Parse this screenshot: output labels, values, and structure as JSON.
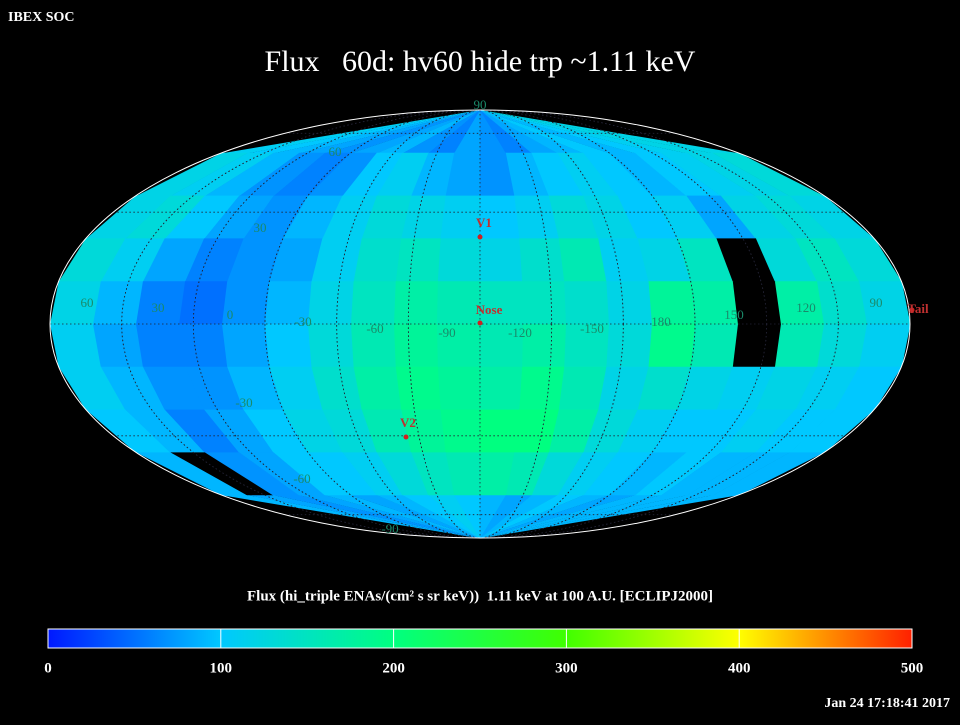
{
  "header": {
    "corner": "IBEX SOC",
    "title": "Flux   60d: hv60 hide trp ~1.11 keV"
  },
  "map": {
    "rows": [
      [
        110,
        100,
        90,
        80,
        70,
        80,
        90,
        70,
        60,
        80,
        70,
        60,
        80,
        90,
        100,
        90,
        100,
        110,
        120,
        120
      ],
      [
        120,
        110,
        90,
        70,
        60,
        70,
        100,
        110,
        90,
        80,
        70,
        90,
        100,
        110,
        100,
        90,
        100,
        110,
        120,
        130
      ],
      [
        120,
        130,
        100,
        80,
        70,
        90,
        110,
        130,
        120,
        110,
        100,
        110,
        130,
        120,
        100,
        110,
        80,
        120,
        130,
        120
      ],
      [
        130,
        110,
        80,
        60,
        70,
        80,
        110,
        140,
        150,
        130,
        120,
        140,
        160,
        110,
        120,
        150,
        null,
        130,
        150,
        130
      ],
      [
        120,
        90,
        60,
        50,
        70,
        90,
        120,
        150,
        170,
        160,
        150,
        150,
        140,
        120,
        180,
        170,
        null,
        170,
        140,
        120
      ],
      [
        110,
        80,
        60,
        60,
        80,
        100,
        130,
        160,
        180,
        170,
        160,
        170,
        150,
        130,
        190,
        160,
        null,
        160,
        130,
        110
      ],
      [
        110,
        90,
        70,
        70,
        90,
        110,
        140,
        170,
        190,
        180,
        170,
        190,
        160,
        120,
        140,
        120,
        110,
        120,
        110,
        100
      ],
      [
        100,
        90,
        60,
        80,
        100,
        120,
        130,
        160,
        180,
        190,
        200,
        200,
        170,
        130,
        110,
        100,
        100,
        110,
        100,
        100
      ],
      [
        90,
        null,
        70,
        80,
        100,
        100,
        110,
        130,
        150,
        160,
        170,
        160,
        130,
        110,
        100,
        90,
        100,
        90,
        90,
        90
      ],
      [
        90,
        80,
        70,
        80,
        90,
        80,
        90,
        100,
        110,
        100,
        90,
        80,
        90,
        100,
        90,
        80,
        90,
        90,
        90,
        90
      ]
    ],
    "longitude_labels": [
      "60",
      "30",
      "0",
      "-30",
      "-60",
      "-90",
      "-120",
      "-150",
      "180",
      "150",
      "120",
      "90"
    ],
    "latitude_labels": [
      "90",
      "60",
      "30",
      "-30",
      "-60",
      "-90"
    ],
    "markers": [
      "V1",
      "Nose",
      "V2",
      "Tail"
    ]
  },
  "colorbar": {
    "label": "Flux (hi_triple ENAs/(cm² s sr keV))  1.11 keV at 100 A.U. [ECLIPJ2000]",
    "ticks": [
      0,
      100,
      200,
      300,
      400,
      500
    ]
  },
  "footer": {
    "timestamp": "Jan 24 17:18:41 2017"
  }
}
